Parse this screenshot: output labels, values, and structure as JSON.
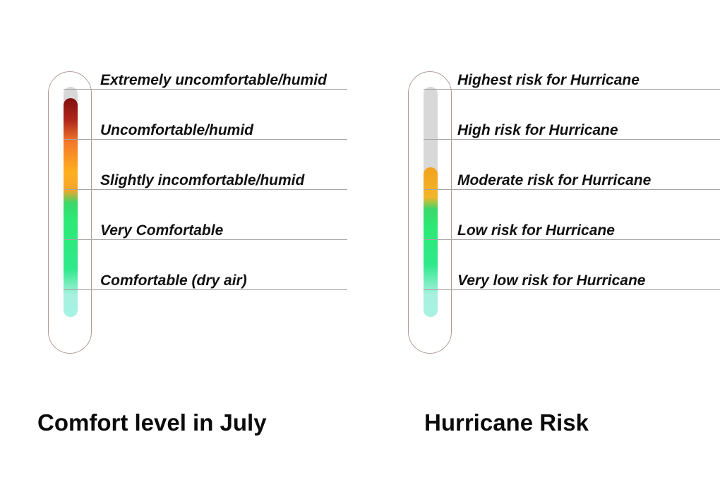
{
  "comfort": {
    "title": "Comfort level in July",
    "level_fraction": 0.95,
    "levels": [
      "Extremely uncomfortable/humid",
      "Uncomfortable/humid",
      "Slightly incomfortable/humid",
      "Very Comfortable",
      "Comfortable (dry air)"
    ]
  },
  "hurricane": {
    "title": "Hurricane Risk",
    "level_fraction": 0.65,
    "levels": [
      "Highest risk for Hurricane",
      "High risk for Hurricane",
      "Moderate risk for Hurricane",
      "Low risk for Hurricane",
      "Very low risk for Hurricane"
    ]
  },
  "colors": {
    "track": "#d8d8d8",
    "capsule_outline": "#b19a98",
    "divider": "#a6a6a6",
    "high": "#801010",
    "medium": "#ffb020",
    "low": "#2de974",
    "lowest": "#a5f3e4"
  }
}
